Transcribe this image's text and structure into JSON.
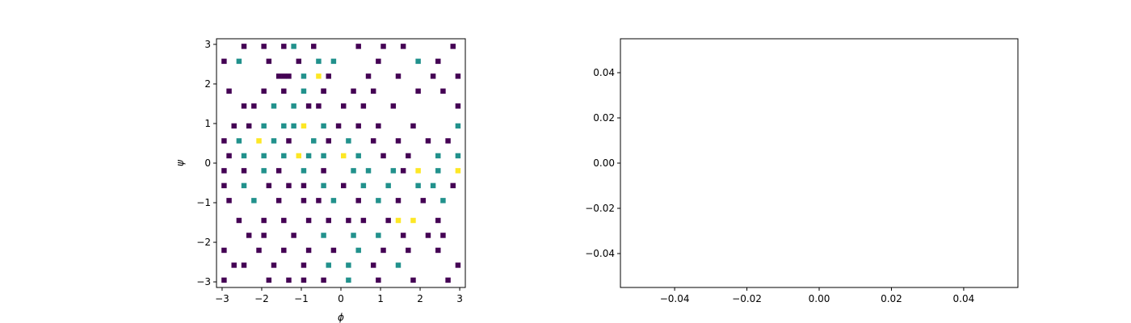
{
  "chart_data": [
    {
      "type": "heatmap",
      "title": "",
      "xlabel": "ϕ",
      "ylabel": "ψ",
      "xlim": [
        -3.14159,
        3.14159
      ],
      "ylim": [
        -3.14159,
        3.14159
      ],
      "x_ticks": [
        -3,
        -2,
        -1,
        0,
        1,
        2,
        3
      ],
      "y_ticks": [
        -3,
        -2,
        -1,
        0,
        1,
        2,
        3
      ],
      "x_tick_labels": [
        "−3",
        "−2",
        "−1",
        "0",
        "1",
        "2",
        "3"
      ],
      "y_tick_labels": [
        "−3",
        "−2",
        "−1",
        "0",
        "1",
        "2",
        "3"
      ],
      "bins": [
        50,
        50
      ],
      "colormap": [
        "#440154",
        "#21918c",
        "#fde725"
      ],
      "empty_color": "#ffffff",
      "grid": false,
      "cells": [
        [
          -2.4,
          3.0,
          1
        ],
        [
          -2.0,
          3.0,
          1
        ],
        [
          -1.5,
          3.0,
          1
        ],
        [
          -1.2,
          3.0,
          2
        ],
        [
          -0.7,
          3.0,
          1
        ],
        [
          0.5,
          3.0,
          1
        ],
        [
          1.1,
          3.0,
          1
        ],
        [
          1.6,
          3.0,
          1
        ],
        [
          2.8,
          3.0,
          1
        ],
        [
          -2.9,
          2.6,
          1
        ],
        [
          -2.6,
          2.6,
          2
        ],
        [
          -1.8,
          2.6,
          1
        ],
        [
          -1.1,
          2.6,
          1
        ],
        [
          -0.6,
          2.6,
          2
        ],
        [
          -0.2,
          2.6,
          2
        ],
        [
          0.9,
          2.6,
          1
        ],
        [
          1.9,
          2.6,
          2
        ],
        [
          2.5,
          2.6,
          1
        ],
        [
          -1.6,
          2.2,
          1
        ],
        [
          -1.5,
          2.2,
          1
        ],
        [
          -1.3,
          2.2,
          1
        ],
        [
          -0.9,
          2.2,
          2
        ],
        [
          -0.6,
          2.2,
          3
        ],
        [
          -0.3,
          2.2,
          1
        ],
        [
          0.7,
          2.2,
          1
        ],
        [
          1.5,
          2.2,
          1
        ],
        [
          2.3,
          2.2,
          1
        ],
        [
          3.0,
          2.2,
          1
        ],
        [
          -2.8,
          1.8,
          1
        ],
        [
          -1.9,
          1.8,
          1
        ],
        [
          -1.5,
          1.8,
          1
        ],
        [
          -1.0,
          1.8,
          2
        ],
        [
          -0.5,
          1.8,
          1
        ],
        [
          -0.4,
          1.8,
          1
        ],
        [
          0.3,
          1.8,
          1
        ],
        [
          0.8,
          1.8,
          1
        ],
        [
          2.0,
          1.8,
          1
        ],
        [
          2.6,
          1.8,
          1
        ],
        [
          -2.5,
          1.4,
          1
        ],
        [
          -2.2,
          1.4,
          1
        ],
        [
          -1.7,
          1.4,
          2
        ],
        [
          -1.2,
          1.4,
          2
        ],
        [
          -0.8,
          1.4,
          1
        ],
        [
          -0.6,
          1.4,
          1
        ],
        [
          0.0,
          1.4,
          1
        ],
        [
          0.6,
          1.4,
          1
        ],
        [
          1.3,
          1.4,
          1
        ],
        [
          2.9,
          1.4,
          1
        ],
        [
          -2.7,
          1.0,
          1
        ],
        [
          -2.3,
          1.0,
          1
        ],
        [
          -1.9,
          1.0,
          2
        ],
        [
          -1.4,
          1.0,
          2
        ],
        [
          -1.2,
          1.0,
          2
        ],
        [
          -0.9,
          1.0,
          3
        ],
        [
          -0.5,
          1.0,
          2
        ],
        [
          -0.1,
          1.0,
          1
        ],
        [
          0.4,
          1.0,
          1
        ],
        [
          1.0,
          1.0,
          1
        ],
        [
          1.8,
          1.0,
          1
        ],
        [
          3.0,
          1.0,
          2
        ],
        [
          -3.0,
          0.6,
          1
        ],
        [
          -2.6,
          0.6,
          2
        ],
        [
          -2.1,
          0.6,
          3
        ],
        [
          -1.7,
          0.6,
          2
        ],
        [
          -1.3,
          0.6,
          1
        ],
        [
          -0.7,
          0.6,
          2
        ],
        [
          -0.3,
          0.6,
          1
        ],
        [
          0.2,
          0.6,
          2
        ],
        [
          0.8,
          0.6,
          1
        ],
        [
          1.4,
          0.6,
          1
        ],
        [
          2.2,
          0.6,
          1
        ],
        [
          2.7,
          0.6,
          1
        ],
        [
          -2.8,
          0.2,
          1
        ],
        [
          -2.4,
          0.2,
          2
        ],
        [
          -1.9,
          0.2,
          2
        ],
        [
          -1.5,
          0.2,
          2
        ],
        [
          -1.1,
          0.2,
          3
        ],
        [
          -0.8,
          0.2,
          2
        ],
        [
          -0.4,
          0.2,
          2
        ],
        [
          0.0,
          0.2,
          3
        ],
        [
          0.5,
          0.2,
          2
        ],
        [
          1.1,
          0.2,
          1
        ],
        [
          1.7,
          0.2,
          1
        ],
        [
          2.4,
          0.2,
          2
        ],
        [
          3.0,
          0.2,
          2
        ],
        [
          -3.0,
          -0.2,
          1
        ],
        [
          -2.5,
          -0.2,
          1
        ],
        [
          -2.0,
          -0.2,
          2
        ],
        [
          -1.6,
          -0.2,
          1
        ],
        [
          -0.9,
          -0.2,
          2
        ],
        [
          -0.5,
          -0.2,
          1
        ],
        [
          0.3,
          -0.2,
          2
        ],
        [
          0.7,
          -0.2,
          2
        ],
        [
          1.3,
          -0.2,
          2
        ],
        [
          1.6,
          -0.2,
          1
        ],
        [
          2.0,
          -0.2,
          3
        ],
        [
          2.5,
          -0.2,
          2
        ],
        [
          2.9,
          -0.2,
          3
        ],
        [
          -2.9,
          -0.6,
          1
        ],
        [
          -2.4,
          -0.6,
          2
        ],
        [
          -1.8,
          -0.6,
          1
        ],
        [
          -1.3,
          -0.6,
          1
        ],
        [
          -0.9,
          -0.6,
          1
        ],
        [
          -0.4,
          -0.6,
          2
        ],
        [
          0.1,
          -0.6,
          1
        ],
        [
          0.6,
          -0.6,
          2
        ],
        [
          1.2,
          -0.6,
          2
        ],
        [
          1.9,
          -0.6,
          2
        ],
        [
          2.3,
          -0.6,
          2
        ],
        [
          2.8,
          -0.6,
          1
        ],
        [
          -2.8,
          -1.0,
          1
        ],
        [
          -2.2,
          -1.0,
          2
        ],
        [
          -1.6,
          -1.0,
          1
        ],
        [
          -1.0,
          -1.0,
          1
        ],
        [
          -0.6,
          -1.0,
          1
        ],
        [
          -0.2,
          -1.0,
          2
        ],
        [
          0.4,
          -1.0,
          1
        ],
        [
          1.0,
          -1.0,
          2
        ],
        [
          1.5,
          -1.0,
          1
        ],
        [
          2.1,
          -1.0,
          1
        ],
        [
          2.6,
          -1.0,
          2
        ],
        [
          -2.6,
          -1.4,
          1
        ],
        [
          -2.0,
          -1.4,
          1
        ],
        [
          -1.4,
          -1.4,
          1
        ],
        [
          -0.8,
          -1.4,
          1
        ],
        [
          -0.3,
          -1.4,
          1
        ],
        [
          0.2,
          -1.4,
          1
        ],
        [
          0.6,
          -1.4,
          1
        ],
        [
          1.2,
          -1.4,
          1
        ],
        [
          1.4,
          -1.4,
          3
        ],
        [
          1.8,
          -1.4,
          3
        ],
        [
          2.4,
          -1.4,
          1
        ],
        [
          -2.3,
          -1.8,
          1
        ],
        [
          -1.9,
          -1.8,
          1
        ],
        [
          -1.2,
          -1.8,
          1
        ],
        [
          -0.5,
          -1.8,
          2
        ],
        [
          0.3,
          -1.8,
          2
        ],
        [
          0.9,
          -1.8,
          2
        ],
        [
          1.6,
          -1.8,
          1
        ],
        [
          2.2,
          -1.8,
          1
        ],
        [
          2.6,
          -1.8,
          1
        ],
        [
          -2.9,
          -2.2,
          1
        ],
        [
          -2.1,
          -2.2,
          1
        ],
        [
          -1.5,
          -2.2,
          1
        ],
        [
          -0.8,
          -2.2,
          1
        ],
        [
          -0.2,
          -2.2,
          1
        ],
        [
          0.5,
          -2.2,
          2
        ],
        [
          1.1,
          -2.2,
          1
        ],
        [
          1.7,
          -2.2,
          1
        ],
        [
          2.5,
          -2.2,
          1
        ],
        [
          -2.7,
          -2.6,
          1
        ],
        [
          -2.4,
          -2.6,
          1
        ],
        [
          -1.7,
          -2.6,
          1
        ],
        [
          -1.0,
          -2.6,
          1
        ],
        [
          -0.3,
          -2.6,
          2
        ],
        [
          0.2,
          -2.6,
          2
        ],
        [
          0.8,
          -2.6,
          1
        ],
        [
          1.5,
          -2.6,
          2
        ],
        [
          2.9,
          -2.6,
          1
        ],
        [
          -2.9,
          -3.0,
          1
        ],
        [
          -1.8,
          -3.0,
          1
        ],
        [
          -1.3,
          -3.0,
          1
        ],
        [
          -0.9,
          -3.0,
          1
        ],
        [
          -0.4,
          -3.0,
          1
        ],
        [
          0.2,
          -3.0,
          2
        ],
        [
          1.0,
          -3.0,
          1
        ],
        [
          1.8,
          -3.0,
          1
        ],
        [
          2.7,
          -3.0,
          1
        ]
      ]
    },
    {
      "type": "line",
      "title": "",
      "xlabel": "",
      "ylabel": "",
      "xlim": [
        -0.055,
        0.055
      ],
      "ylim": [
        -0.055,
        0.055
      ],
      "x_ticks": [
        -0.04,
        -0.02,
        0.0,
        0.02,
        0.04
      ],
      "y_ticks": [
        -0.04,
        -0.02,
        0.0,
        0.02,
        0.04
      ],
      "x_tick_labels": [
        "−0.04",
        "−0.02",
        "0.00",
        "0.02",
        "0.04"
      ],
      "y_tick_labels": [
        "−0.04",
        "−0.02",
        "0.00",
        "0.02",
        "0.04"
      ],
      "series": [],
      "grid": false
    }
  ]
}
